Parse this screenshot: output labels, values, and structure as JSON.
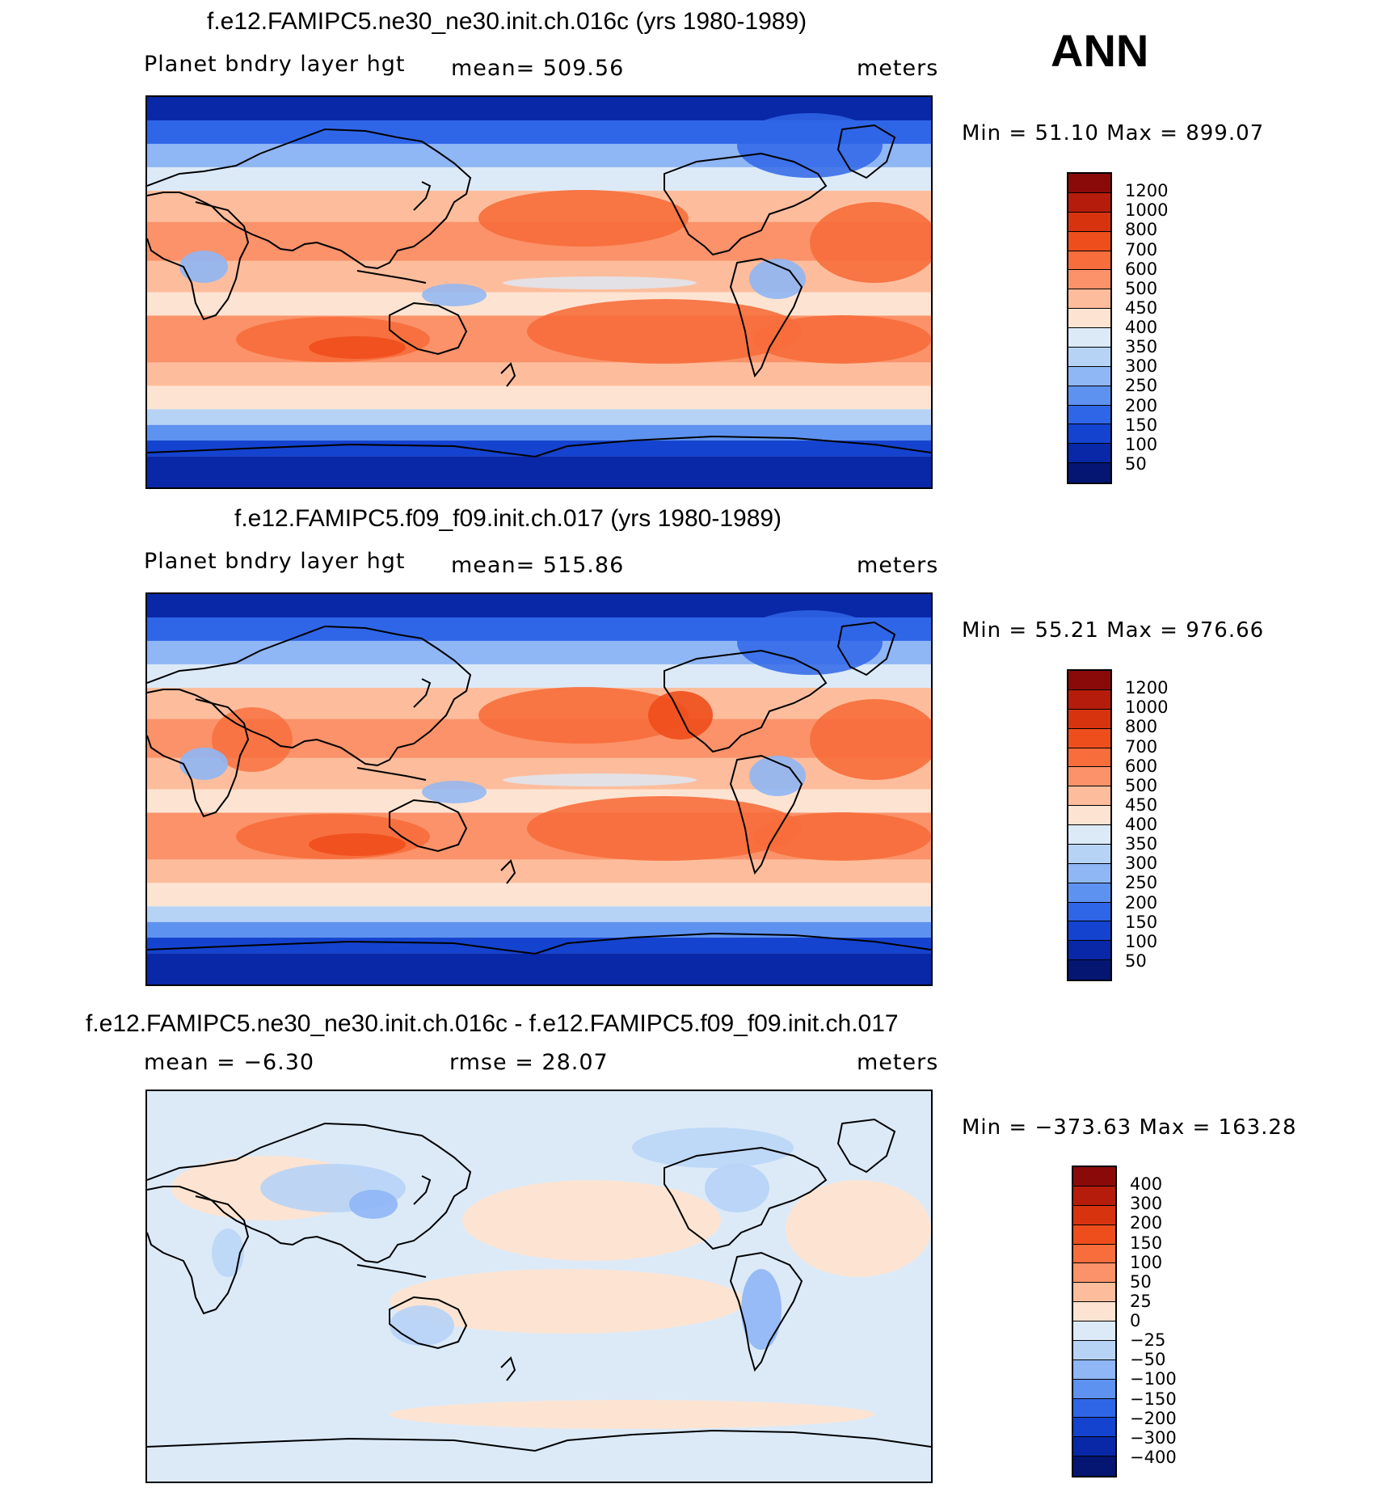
{
  "season": "ANN",
  "panels": [
    {
      "title": "f.e12.FAMIPC5.ne30_ne30.init.ch.016c (yrs 1980-1989)",
      "left_label": "Planet bndry layer hgt",
      "center_label": "mean=  509.56",
      "units": "meters",
      "minmax": "Min =   51.10 Max = 899.07",
      "kind": "abs",
      "colorbar_labels": [
        "1200",
        "1000",
        "800",
        "700",
        "600",
        "500",
        "450",
        "400",
        "350",
        "300",
        "250",
        "200",
        "150",
        "100",
        "50"
      ]
    },
    {
      "title": "f.e12.FAMIPC5.f09_f09.init.ch.017 (yrs 1980-1989)",
      "left_label": "Planet bndry layer hgt",
      "center_label": "mean=  515.86",
      "units": "meters",
      "minmax": "Min =   55.21 Max = 976.66",
      "kind": "abs",
      "colorbar_labels": [
        "1200",
        "1000",
        "800",
        "700",
        "600",
        "500",
        "450",
        "400",
        "350",
        "300",
        "250",
        "200",
        "150",
        "100",
        "50"
      ]
    },
    {
      "title": "f.e12.FAMIPC5.ne30_ne30.init.ch.016c - f.e12.FAMIPC5.f09_f09.init.ch.017",
      "left_label": "mean =   −6.30",
      "center_label": "rmse =   28.07",
      "units": "meters",
      "minmax": "Min = −373.63 Max = 163.28",
      "kind": "diff",
      "colorbar_labels": [
        "400",
        "300",
        "200",
        "150",
        "100",
        "50",
        "25",
        "0",
        "−25",
        "−50",
        "−100",
        "−150",
        "−200",
        "−300",
        "−400"
      ]
    }
  ],
  "colors": {
    "abs_scale": [
      "#8a0a0a",
      "#b61c0c",
      "#d8330f",
      "#ee4e1c",
      "#f76d3b",
      "#fb9269",
      "#fdbd9c",
      "#fde4d2",
      "#dceaf8",
      "#b6d3f6",
      "#8fb6f5",
      "#5e92f0",
      "#2f66e8",
      "#1443cf",
      "#0828a8",
      "#041672"
    ],
    "diff_scale": [
      "#8a0a0a",
      "#b61c0c",
      "#d8330f",
      "#ee4e1c",
      "#f76d3b",
      "#fb9269",
      "#fdbd9c",
      "#fde4d2",
      "#dceaf8",
      "#b6d3f6",
      "#8fb6f5",
      "#5e92f0",
      "#2f66e8",
      "#1443cf",
      "#0828a8",
      "#041672"
    ]
  }
}
